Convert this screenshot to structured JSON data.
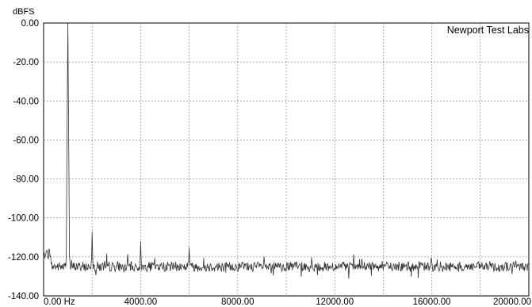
{
  "chart_data": {
    "type": "line",
    "ylabel": "dBFS",
    "annotation": "Newport Test Labs",
    "xlim": [
      0,
      20000
    ],
    "ylim": [
      -140,
      0
    ],
    "x_ticks": [
      {
        "value": 0,
        "label": "0.00 Hz"
      },
      {
        "value": 4000,
        "label": "4000.00"
      },
      {
        "value": 8000,
        "label": "8000.00"
      },
      {
        "value": 12000,
        "label": "12000.00"
      },
      {
        "value": 16000,
        "label": "16000.00"
      },
      {
        "value": 20000,
        "label": "20000.00"
      }
    ],
    "y_ticks": [
      {
        "value": 0,
        "label": "0.00"
      },
      {
        "value": -20,
        "label": "-20.00"
      },
      {
        "value": -40,
        "label": "-40.00"
      },
      {
        "value": -60,
        "label": "-60.00"
      },
      {
        "value": -80,
        "label": "-80.00"
      },
      {
        "value": -100,
        "label": "-100.00"
      },
      {
        "value": -120,
        "label": "-120.00"
      },
      {
        "value": -140,
        "label": "-140.00"
      }
    ],
    "grid": true,
    "x_grid_step": 2000,
    "line_color": "#333333",
    "noise_floor_db": -125,
    "peaks": [
      {
        "x": 1000,
        "y": 0
      },
      {
        "x": 2000,
        "y": -107
      },
      {
        "x": 4000,
        "y": -112
      },
      {
        "x": 6000,
        "y": -115
      },
      {
        "x": 250,
        "y": -115
      }
    ]
  }
}
